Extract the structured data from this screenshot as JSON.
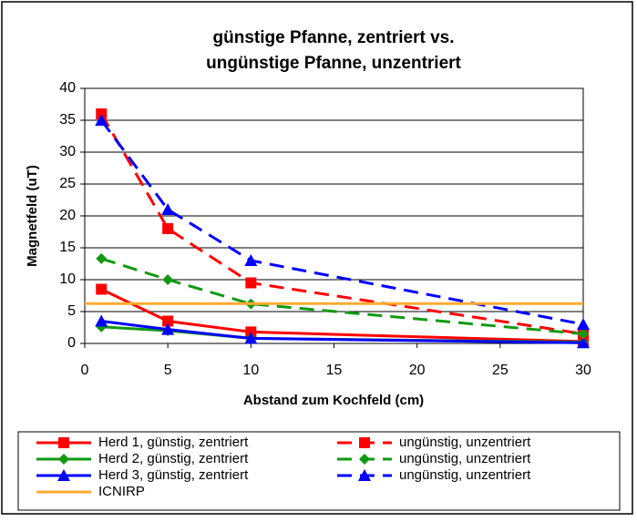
{
  "chart_data": {
    "type": "line",
    "title": [
      "günstige Pfanne, zentriert vs.",
      "ungünstige Pfanne, unzentriert"
    ],
    "x_label": "Abstand zum Kochfeld (cm)",
    "y_label": "Magnetfeld (uT)",
    "x": [
      1,
      5,
      10,
      30
    ],
    "xlim": [
      0,
      30
    ],
    "xticks": [
      0,
      5,
      10,
      15,
      20,
      25,
      30
    ],
    "ylim": [
      0,
      40
    ],
    "yticks": [
      0,
      5,
      10,
      15,
      20,
      25,
      30,
      35,
      40
    ],
    "grid": true,
    "legend": "bottom",
    "series": [
      {
        "name": "Herd 1, günstig, zentriert",
        "color": "#ff0000",
        "marker": "square",
        "dash": false,
        "values": [
          8.5,
          3.5,
          1.8,
          0.3
        ]
      },
      {
        "name": "Herd 2, günstig, zentriert",
        "color": "#119911",
        "marker": "diamond",
        "dash": false,
        "values": [
          2.6,
          2,
          0.8,
          0.2
        ]
      },
      {
        "name": "Herd 3, günstig, zentriert",
        "color": "#0000ff",
        "marker": "triangle",
        "dash": false,
        "values": [
          3.5,
          2.2,
          0.8,
          0.1
        ]
      },
      {
        "name": "ungünstig, unzentriert",
        "color": "#ff0000",
        "marker": "square",
        "dash": true,
        "values": [
          36,
          18,
          9.5,
          1.5
        ]
      },
      {
        "name": "ungünstig, unzentriert",
        "color": "#119911",
        "marker": "diamond",
        "dash": true,
        "values": [
          13.3,
          10,
          6.2,
          1.5
        ]
      },
      {
        "name": "ungünstig, unzentriert",
        "color": "#0000ff",
        "marker": "triangle",
        "dash": true,
        "values": [
          35,
          21,
          13,
          3
        ]
      },
      {
        "name": "ICNIRP",
        "color": "#ffaa33",
        "dash": false,
        "x": [
          0,
          30
        ],
        "values": [
          6.25,
          6.25
        ]
      }
    ]
  }
}
